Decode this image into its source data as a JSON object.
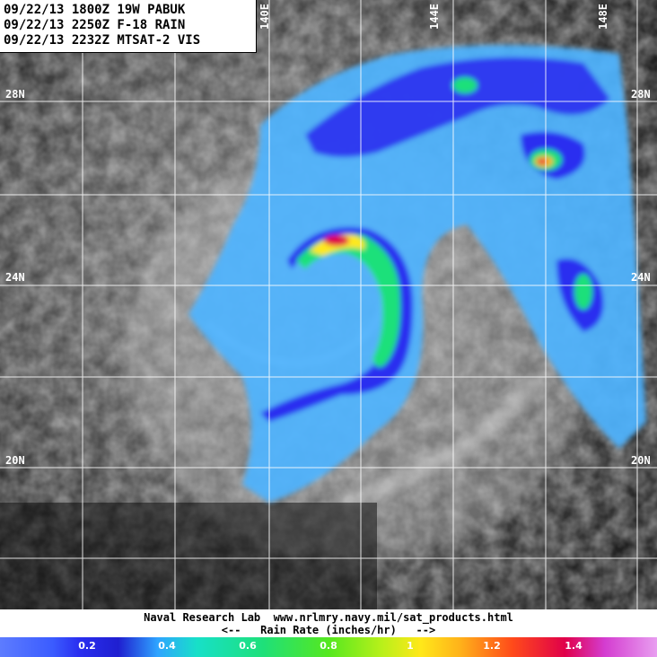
{
  "header": {
    "line1": "09/22/13 1800Z 19W PABUK",
    "line2": "09/22/13 2250Z F-18 RAIN",
    "line3": "09/22/13 2232Z MTSAT-2 VIS"
  },
  "map": {
    "lat_labels_left": [
      "28N",
      "24N",
      "20N"
    ],
    "lat_labels_right": [
      "28N",
      "24N",
      "20N"
    ],
    "lon_labels": [
      "140E",
      "144E",
      "148E"
    ]
  },
  "footer": {
    "credit": "Naval Research Lab  www.nrlmry.navy.mil/sat_products.html",
    "scale_caption": "<--   Rain Rate (inches/hr)   -->",
    "colorbar_ticks": [
      "0.2",
      "0.4",
      "0.6",
      "0.8",
      "1",
      "1.2",
      "1.4"
    ]
  },
  "colors": {
    "light_rain": "#4fb4ff",
    "moderate_rain": "#2a2ff0",
    "heavy_rain": "#1ee07a",
    "intense_rain": "#ffe81a",
    "extreme_rain": "#e0004a"
  }
}
